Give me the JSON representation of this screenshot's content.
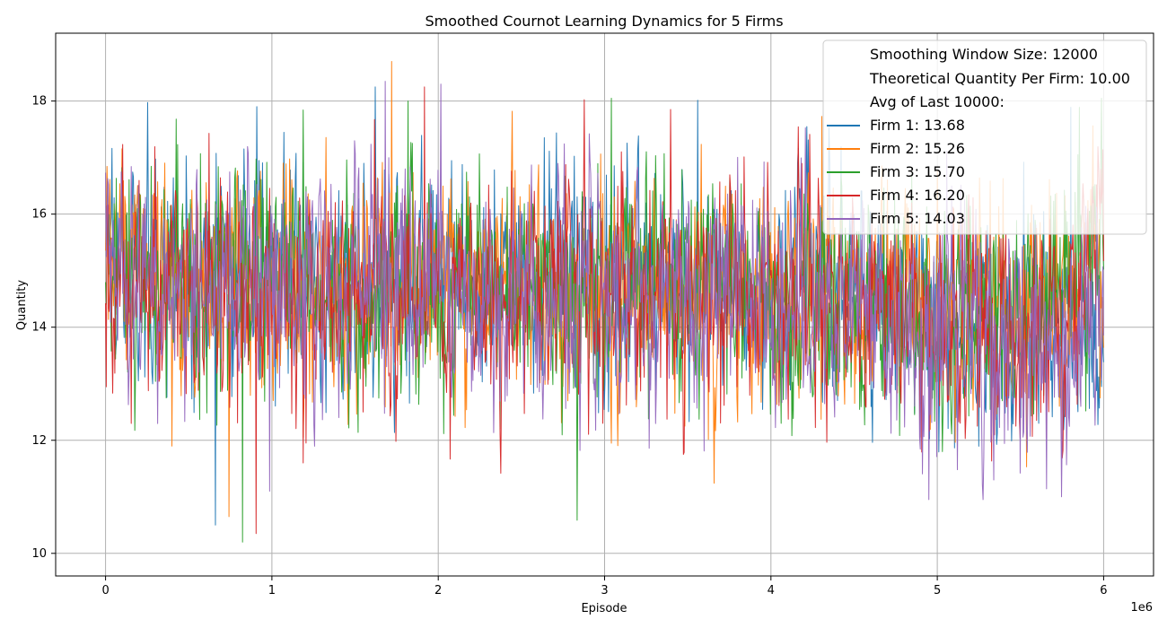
{
  "chart_data": {
    "type": "line",
    "title": "Smoothed Cournot Learning Dynamics for 5 Firms",
    "xlabel": "Episode",
    "ylabel": "Quantity",
    "x_offset_label": "1e6",
    "xlim": [
      -0.3,
      6.3
    ],
    "ylim": [
      9.6,
      19.2
    ],
    "x_ticks": [
      0,
      1,
      2,
      3,
      4,
      5,
      6
    ],
    "y_ticks": [
      10,
      12,
      14,
      16,
      18
    ],
    "grid": true,
    "legend_position": "top-right",
    "legend_header": [
      "Smoothing Window Size: 12000",
      "Theoretical Quantity Per Firm: 10.00",
      "Avg of Last 10000:"
    ],
    "series": [
      {
        "name": "Firm 1: 13.68",
        "color": "#1f77b4",
        "x": [
          0,
          0.25,
          0.5,
          0.75,
          1.0,
          1.25,
          1.5,
          1.75,
          2.0,
          2.25,
          2.5,
          2.75,
          3.0,
          3.25,
          3.5,
          3.75,
          4.0,
          4.25,
          4.5,
          4.75,
          5.0,
          5.25,
          5.5,
          5.75,
          6.0
        ],
        "values": [
          15.2,
          15.0,
          14.8,
          14.9,
          15.0,
          14.7,
          14.6,
          14.8,
          14.9,
          14.7,
          14.8,
          14.7,
          15.0,
          14.8,
          14.7,
          14.9,
          14.6,
          14.7,
          14.4,
          14.3,
          14.4,
          14.2,
          14.1,
          13.9,
          13.68
        ],
        "spread": [
          1.1,
          1.3,
          1.4,
          1.3,
          1.4,
          1.3,
          1.4,
          1.3,
          1.3,
          1.3,
          1.4,
          1.4,
          1.5,
          1.4,
          1.3,
          1.3,
          1.3,
          1.3,
          1.4,
          1.4,
          1.4,
          1.4,
          1.4,
          1.4,
          1.3
        ],
        "min": 10.35,
        "max": 18.3
      },
      {
        "name": "Firm 2: 15.26",
        "color": "#ff7f0e",
        "x": [
          0,
          0.25,
          0.5,
          0.75,
          1.0,
          1.25,
          1.5,
          1.75,
          2.0,
          2.25,
          2.5,
          2.75,
          3.0,
          3.25,
          3.5,
          3.75,
          4.0,
          4.25,
          4.5,
          4.75,
          5.0,
          5.25,
          5.5,
          5.75,
          6.0
        ],
        "values": [
          15.3,
          15.1,
          14.9,
          14.8,
          14.9,
          14.8,
          14.6,
          14.9,
          14.8,
          14.7,
          14.8,
          14.6,
          15.0,
          14.7,
          14.6,
          14.7,
          14.5,
          14.6,
          14.5,
          14.4,
          14.5,
          14.3,
          14.2,
          14.4,
          15.26
        ],
        "spread": [
          1.2,
          1.3,
          1.4,
          1.3,
          1.4,
          1.3,
          1.3,
          1.4,
          1.3,
          1.3,
          1.4,
          1.4,
          1.5,
          1.4,
          1.3,
          1.3,
          1.3,
          1.3,
          1.4,
          1.4,
          1.4,
          1.4,
          1.4,
          1.4,
          1.3
        ],
        "min": 10.5,
        "max": 18.75
      },
      {
        "name": "Firm 3: 15.70",
        "color": "#2ca02c",
        "x": [
          0,
          0.25,
          0.5,
          0.75,
          1.0,
          1.25,
          1.5,
          1.75,
          2.0,
          2.25,
          2.5,
          2.75,
          3.0,
          3.25,
          3.5,
          3.75,
          4.0,
          4.25,
          4.5,
          4.75,
          5.0,
          5.25,
          5.5,
          5.75,
          6.0
        ],
        "values": [
          15.1,
          14.9,
          14.7,
          14.9,
          14.8,
          14.6,
          14.7,
          14.9,
          14.8,
          14.8,
          14.6,
          14.7,
          14.9,
          14.8,
          14.6,
          14.7,
          14.6,
          14.5,
          14.4,
          14.3,
          14.2,
          14.3,
          14.2,
          14.6,
          15.7
        ],
        "spread": [
          1.1,
          1.3,
          1.4,
          1.3,
          1.4,
          1.3,
          1.4,
          1.3,
          1.3,
          1.3,
          1.4,
          1.4,
          1.5,
          1.4,
          1.3,
          1.3,
          1.3,
          1.3,
          1.4,
          1.4,
          1.4,
          1.4,
          1.4,
          1.4,
          1.3
        ],
        "min": 10.05,
        "max": 18.05
      },
      {
        "name": "Firm 4: 16.20",
        "color": "#d62728",
        "x": [
          0,
          0.25,
          0.5,
          0.75,
          1.0,
          1.25,
          1.5,
          1.75,
          2.0,
          2.25,
          2.5,
          2.75,
          3.0,
          3.25,
          3.5,
          3.75,
          4.0,
          4.25,
          4.5,
          4.75,
          5.0,
          5.25,
          5.5,
          5.75,
          6.0
        ],
        "values": [
          14.7,
          14.8,
          14.6,
          14.7,
          14.7,
          14.5,
          14.5,
          14.6,
          14.7,
          14.6,
          14.5,
          14.6,
          14.7,
          14.6,
          14.5,
          14.6,
          14.4,
          14.4,
          14.3,
          14.2,
          14.1,
          14.0,
          13.9,
          13.7,
          16.2
        ],
        "spread": [
          1.1,
          1.3,
          1.4,
          1.3,
          1.4,
          1.3,
          1.4,
          1.3,
          1.3,
          1.3,
          1.4,
          1.4,
          1.5,
          1.4,
          1.3,
          1.3,
          1.3,
          1.3,
          1.4,
          1.4,
          1.4,
          1.4,
          1.4,
          1.4,
          1.3
        ],
        "min": 10.2,
        "max": 18.3
      },
      {
        "name": "Firm 5: 14.03",
        "color": "#9467bd",
        "x": [
          0,
          0.25,
          0.5,
          0.75,
          1.0,
          1.25,
          1.5,
          1.75,
          2.0,
          2.25,
          2.5,
          2.75,
          3.0,
          3.25,
          3.5,
          3.75,
          4.0,
          4.25,
          4.5,
          4.75,
          5.0,
          5.25,
          5.5,
          5.75,
          6.0
        ],
        "values": [
          15.0,
          14.9,
          14.8,
          14.7,
          14.8,
          14.6,
          14.5,
          14.7,
          14.8,
          14.6,
          14.6,
          14.5,
          14.8,
          14.6,
          14.5,
          14.6,
          14.4,
          14.3,
          14.2,
          14.1,
          14.1,
          14.0,
          13.9,
          13.8,
          14.03
        ],
        "spread": [
          1.1,
          1.3,
          1.4,
          1.3,
          1.4,
          1.3,
          1.4,
          1.3,
          1.3,
          1.3,
          1.4,
          1.4,
          1.5,
          1.4,
          1.3,
          1.3,
          1.3,
          1.3,
          1.4,
          1.4,
          1.4,
          1.4,
          1.4,
          1.4,
          1.3
        ],
        "min": 10.95,
        "max": 18.35
      }
    ]
  }
}
